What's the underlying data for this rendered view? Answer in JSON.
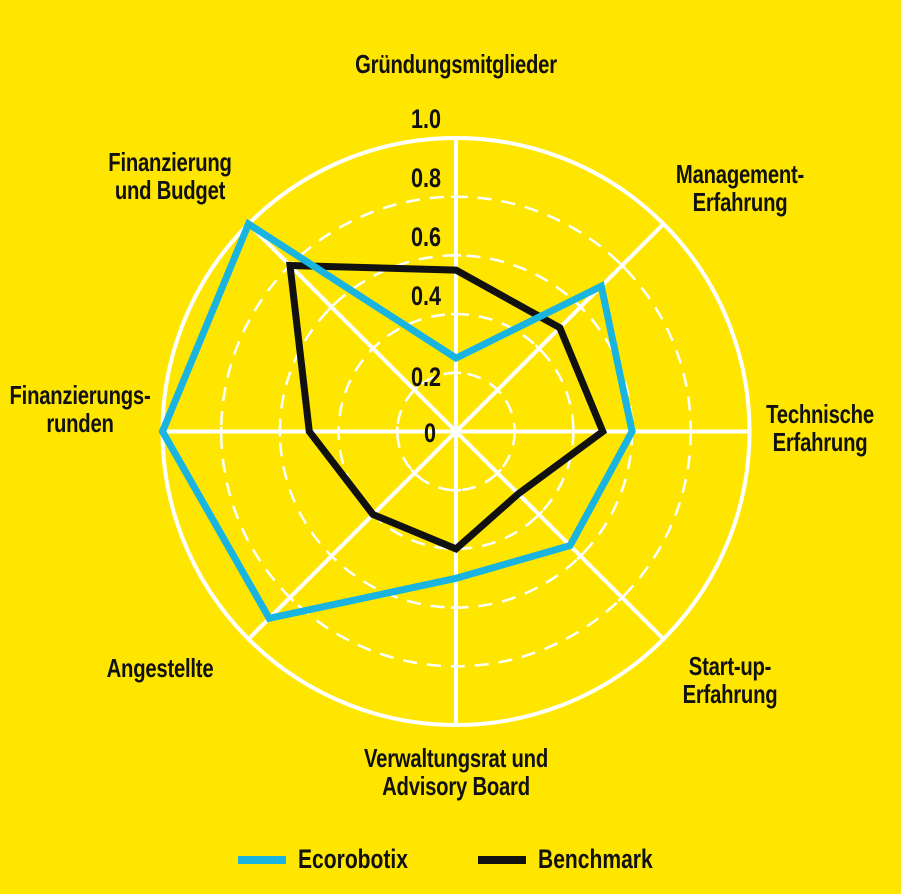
{
  "chart_data": {
    "type": "radar",
    "title": "",
    "axes": [
      "Gründungsmitglieder",
      "Management-Erfahrung",
      "Technische Erfahrung",
      "Start-up-Erfahrung",
      "Verwaltungsrat und Advisory Board",
      "Angestellte",
      "Finanzierungsrunden",
      "Finanzierung und Budget"
    ],
    "series": [
      {
        "name": "Ecorobotix",
        "color": "#1AB4E0",
        "values": [
          0.25,
          0.7,
          0.6,
          0.55,
          0.5,
          0.9,
          1.0,
          1.0
        ]
      },
      {
        "name": "Benchmark",
        "color": "#111111",
        "values": [
          0.55,
          0.5,
          0.5,
          0.3,
          0.4,
          0.4,
          0.5,
          0.8
        ]
      }
    ],
    "radial_ticks": [
      "0",
      "0.2",
      "0.4",
      "0.6",
      "0.8",
      "1.0"
    ],
    "rlim": [
      0,
      1.0
    ],
    "grid": true,
    "legend_position": "bottom"
  },
  "labels": {
    "top": [
      "Gründungsmitglieder"
    ],
    "ne": [
      "Management-",
      "Erfahrung"
    ],
    "e": [
      "Technische",
      "Erfahrung"
    ],
    "se": [
      "Start-up-",
      "Erfahrung"
    ],
    "s": [
      "Verwaltungsrat und",
      "Advisory Board"
    ],
    "sw": [
      "Angestellte"
    ],
    "w": [
      "Finanzierungs-",
      "runden"
    ],
    "nw": [
      "Finanzierung",
      "und Budget"
    ]
  },
  "legend": {
    "items": [
      {
        "label": "Ecorobotix",
        "color": "#1AB4E0"
      },
      {
        "label": "Benchmark",
        "color": "#111111"
      }
    ]
  },
  "colors": {
    "background": "#FFE600",
    "grid": "#FFFFFF"
  }
}
